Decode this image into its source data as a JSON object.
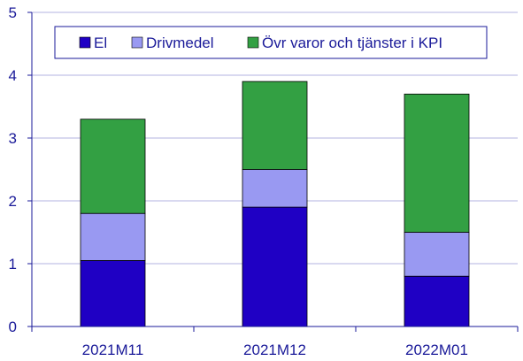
{
  "chart_data": {
    "type": "bar",
    "stacked": true,
    "categories": [
      "2021M11",
      "2021M12",
      "2022M01"
    ],
    "series": [
      {
        "name": "El",
        "values": [
          1.05,
          1.9,
          0.8
        ],
        "color": "#1f00c4"
      },
      {
        "name": "Drivmedel",
        "values": [
          0.75,
          0.6,
          0.7
        ],
        "color": "#9999f2"
      },
      {
        "name": "Övr varor och tjänster i KPI",
        "values": [
          1.5,
          1.4,
          2.2
        ],
        "color": "#33a043"
      }
    ],
    "yticks": [
      "0",
      "1",
      "2",
      "3",
      "4",
      "5"
    ],
    "ylim": [
      0,
      5
    ],
    "grid": "horizontal",
    "legend_position": "top-right",
    "axis_color": "#1a1a99",
    "grid_color": "#b3b3e0"
  }
}
